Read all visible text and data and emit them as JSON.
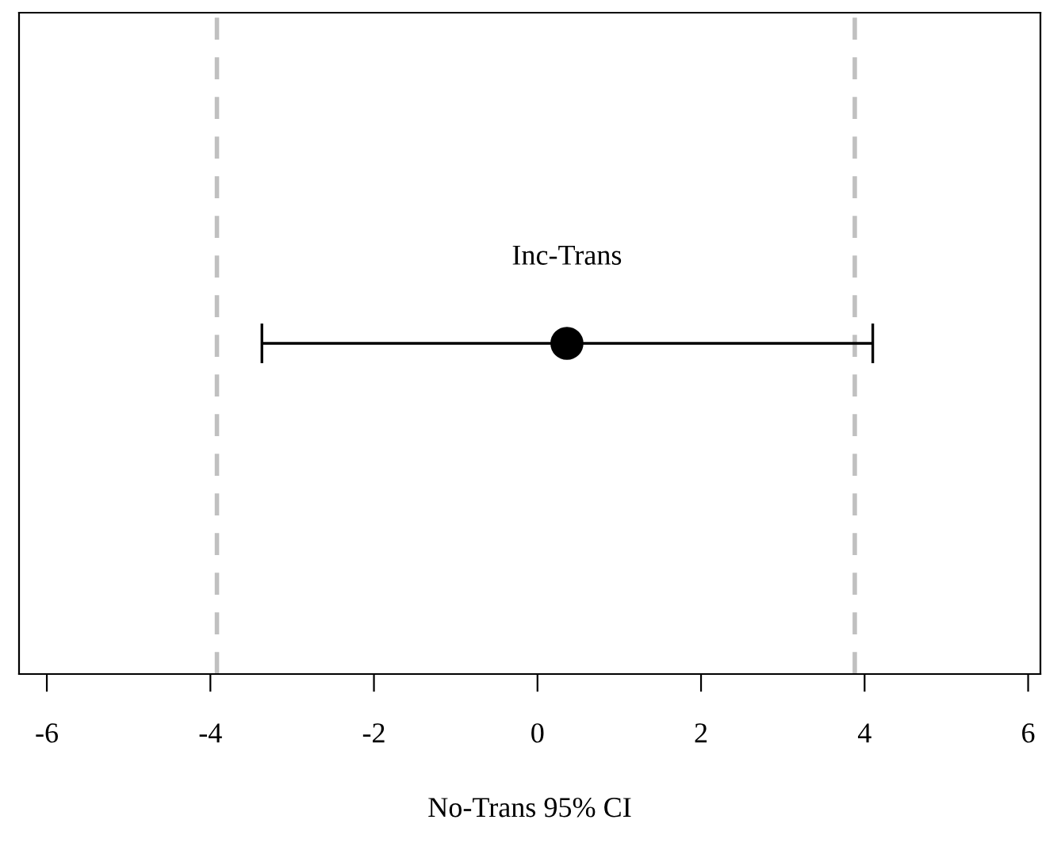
{
  "chart_data": {
    "type": "scatter",
    "orientation": "horizontal",
    "xlabel": "No-Trans 95% CI",
    "categories": [
      "Inc-Trans"
    ],
    "series": [
      {
        "color": "#000000",
        "values": [
          0.36
        ],
        "errors": [
          [
            -3.37,
            4.1
          ]
        ]
      }
    ],
    "marker": "circle",
    "xlim": [
      -6.34,
      6.15
    ],
    "xticks": [
      -6,
      -4,
      -2,
      0,
      2,
      4,
      6
    ],
    "ref_lines": [
      {
        "axis": "x",
        "value": -3.92,
        "color": "#c0c0c0",
        "line_style": "dashed"
      },
      {
        "axis": "x",
        "value": 3.88,
        "color": "#c0c0c0",
        "line_style": "dashed"
      }
    ],
    "grid": false,
    "legend": false
  }
}
